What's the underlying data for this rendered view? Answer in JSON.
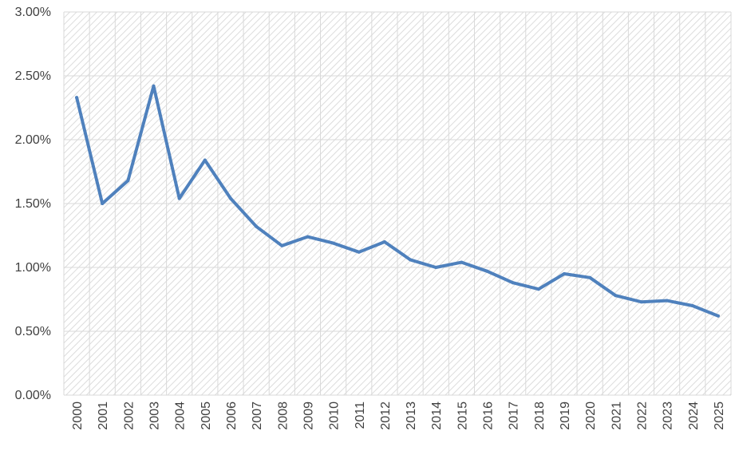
{
  "chart_data": {
    "type": "line",
    "title": "",
    "xlabel": "",
    "ylabel": "",
    "categories": [
      "2000",
      "2001",
      "2002",
      "2003",
      "2004",
      "2005",
      "2006",
      "2007",
      "2008",
      "2009",
      "2010",
      "2011",
      "2012",
      "2013",
      "2014",
      "2015",
      "2016",
      "2017",
      "2018",
      "2019",
      "2020",
      "2021",
      "2022",
      "2023",
      "2024",
      "2025"
    ],
    "series": [
      {
        "values": [
          2.33,
          1.5,
          1.68,
          2.42,
          1.54,
          1.84,
          1.54,
          1.32,
          1.17,
          1.24,
          1.19,
          1.12,
          1.2,
          1.06,
          1.0,
          1.04,
          0.97,
          0.88,
          0.83,
          0.95,
          0.92,
          0.78,
          0.73,
          0.74,
          0.7,
          0.62
        ]
      }
    ],
    "ylim": [
      0,
      3.0
    ],
    "yticks": [
      "0.00%",
      "0.50%",
      "1.00%",
      "1.50%",
      "2.00%",
      "2.50%",
      "3.00%"
    ],
    "grid": true,
    "legend": "none",
    "colors": {
      "line": "#4f81bd",
      "plot_background_hatch": "#d9d9d9",
      "gridline": "#d9d9d9",
      "text": "#404040"
    }
  }
}
